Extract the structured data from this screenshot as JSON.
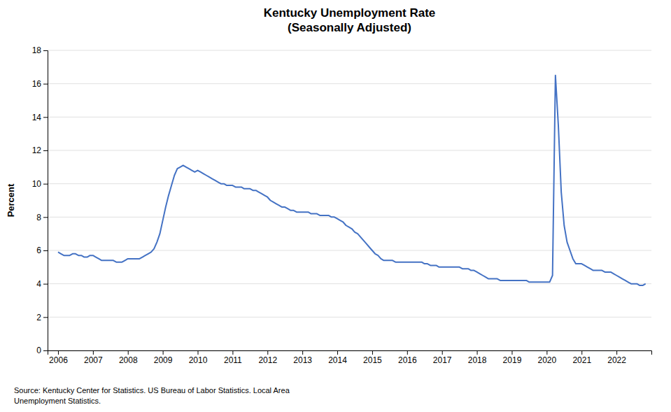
{
  "chart_data": {
    "type": "line",
    "title": "Kentucky Unemployment Rate\n(Seasonally Adjusted)",
    "y_label": "Percent",
    "annotations": [
      "Source: Kentucky Center for Statistics. US Bureau of Labor Statistics. Local Area\nUnemployment Statistics."
    ],
    "color": "#4472C4",
    "grid": true,
    "xlim": [
      2005.7,
      2023.0
    ],
    "xticks": [
      2006,
      2007,
      2008,
      2009,
      2010,
      2011,
      2012,
      2013,
      2014,
      2015,
      2016,
      2017,
      2018,
      2019,
      2020,
      2021,
      2022
    ],
    "ylim": [
      0,
      18
    ],
    "yticks": [
      0,
      2,
      4,
      6,
      8,
      10,
      12,
      14,
      16,
      18
    ],
    "x": [
      2006,
      2006.0833333333333,
      2006.1666666666667,
      2006.25,
      2006.3333333333333,
      2006.4166666666667,
      2006.5,
      2006.5833333333333,
      2006.6666666666667,
      2006.75,
      2006.8333333333333,
      2006.9166666666667,
      2007,
      2007.0833333333333,
      2007.1666666666667,
      2007.25,
      2007.3333333333333,
      2007.4166666666667,
      2007.5,
      2007.5833333333333,
      2007.6666666666667,
      2007.75,
      2007.8333333333333,
      2007.9166666666667,
      2008,
      2008.0833333333333,
      2008.1666666666667,
      2008.25,
      2008.3333333333333,
      2008.4166666666667,
      2008.5,
      2008.5833333333333,
      2008.6666666666667,
      2008.75,
      2008.8333333333333,
      2008.9166666666667,
      2009,
      2009.0833333333333,
      2009.1666666666667,
      2009.25,
      2009.3333333333333,
      2009.4166666666667,
      2009.5,
      2009.5833333333333,
      2009.6666666666667,
      2009.75,
      2009.8333333333333,
      2009.9166666666667,
      2010,
      2010.0833333333333,
      2010.1666666666667,
      2010.25,
      2010.3333333333333,
      2010.4166666666667,
      2010.5,
      2010.5833333333333,
      2010.6666666666667,
      2010.75,
      2010.8333333333333,
      2010.9166666666667,
      2011,
      2011.0833333333333,
      2011.1666666666667,
      2011.25,
      2011.3333333333333,
      2011.4166666666667,
      2011.5,
      2011.5833333333333,
      2011.6666666666667,
      2011.75,
      2011.8333333333333,
      2011.9166666666667,
      2012,
      2012.0833333333333,
      2012.1666666666667,
      2012.25,
      2012.3333333333333,
      2012.4166666666667,
      2012.5,
      2012.5833333333333,
      2012.6666666666667,
      2012.75,
      2012.8333333333333,
      2012.9166666666667,
      2013,
      2013.0833333333333,
      2013.1666666666667,
      2013.25,
      2013.3333333333333,
      2013.4166666666667,
      2013.5,
      2013.5833333333333,
      2013.6666666666667,
      2013.75,
      2013.8333333333333,
      2013.9166666666667,
      2014,
      2014.0833333333333,
      2014.1666666666667,
      2014.25,
      2014.3333333333333,
      2014.4166666666667,
      2014.5,
      2014.5833333333333,
      2014.6666666666667,
      2014.75,
      2014.8333333333333,
      2014.9166666666667,
      2015,
      2015.0833333333333,
      2015.1666666666667,
      2015.25,
      2015.3333333333333,
      2015.4166666666667,
      2015.5,
      2015.5833333333333,
      2015.6666666666667,
      2015.75,
      2015.8333333333333,
      2015.9166666666667,
      2016,
      2016.0833333333333,
      2016.1666666666667,
      2016.25,
      2016.3333333333333,
      2016.4166666666667,
      2016.5,
      2016.5833333333333,
      2016.6666666666667,
      2016.75,
      2016.8333333333333,
      2016.9166666666667,
      2017,
      2017.0833333333333,
      2017.1666666666667,
      2017.25,
      2017.3333333333333,
      2017.4166666666667,
      2017.5,
      2017.5833333333333,
      2017.6666666666667,
      2017.75,
      2017.8333333333333,
      2017.9166666666667,
      2018,
      2018.0833333333333,
      2018.1666666666667,
      2018.25,
      2018.3333333333333,
      2018.4166666666667,
      2018.5,
      2018.5833333333333,
      2018.6666666666667,
      2018.75,
      2018.8333333333333,
      2018.9166666666667,
      2019,
      2019.0833333333333,
      2019.1666666666667,
      2019.25,
      2019.3333333333333,
      2019.4166666666667,
      2019.5,
      2019.5833333333333,
      2019.6666666666667,
      2019.75,
      2019.8333333333333,
      2019.9166666666667,
      2020,
      2020.0833333333333,
      2020.1666666666667,
      2020.25,
      2020.3333333333333,
      2020.4166666666667,
      2020.5,
      2020.5833333333333,
      2020.6666666666667,
      2020.75,
      2020.8333333333333,
      2020.9166666666667,
      2021,
      2021.0833333333333,
      2021.1666666666667,
      2021.25,
      2021.3333333333333,
      2021.4166666666667,
      2021.5,
      2021.5833333333333,
      2021.6666666666667,
      2021.75,
      2021.8333333333333,
      2021.9166666666667,
      2022,
      2022.0833333333333,
      2022.1666666666667,
      2022.25,
      2022.3333333333333,
      2022.4166666666667,
      2022.5,
      2022.5833333333333,
      2022.6666666666667,
      2022.75,
      2022.8333333333333
    ],
    "values": [
      5.9,
      5.8,
      5.7,
      5.7,
      5.7,
      5.8,
      5.8,
      5.7,
      5.7,
      5.6,
      5.6,
      5.7,
      5.7,
      5.6,
      5.5,
      5.4,
      5.4,
      5.4,
      5.4,
      5.4,
      5.3,
      5.3,
      5.3,
      5.4,
      5.5,
      5.5,
      5.5,
      5.5,
      5.5,
      5.6,
      5.7,
      5.8,
      5.9,
      6.1,
      6.5,
      7.0,
      7.8,
      8.6,
      9.3,
      9.9,
      10.5,
      10.9,
      11.0,
      11.1,
      11.0,
      10.9,
      10.8,
      10.7,
      10.8,
      10.7,
      10.6,
      10.5,
      10.4,
      10.3,
      10.2,
      10.1,
      10.0,
      10.0,
      9.9,
      9.9,
      9.9,
      9.8,
      9.8,
      9.8,
      9.7,
      9.7,
      9.7,
      9.6,
      9.6,
      9.5,
      9.4,
      9.3,
      9.2,
      9.0,
      8.9,
      8.8,
      8.7,
      8.6,
      8.6,
      8.5,
      8.4,
      8.4,
      8.3,
      8.3,
      8.3,
      8.3,
      8.3,
      8.2,
      8.2,
      8.2,
      8.1,
      8.1,
      8.1,
      8.1,
      8.0,
      8.0,
      7.9,
      7.8,
      7.7,
      7.5,
      7.4,
      7.3,
      7.1,
      7.0,
      6.8,
      6.6,
      6.4,
      6.2,
      6.0,
      5.8,
      5.7,
      5.5,
      5.4,
      5.4,
      5.4,
      5.4,
      5.3,
      5.3,
      5.3,
      5.3,
      5.3,
      5.3,
      5.3,
      5.3,
      5.3,
      5.3,
      5.2,
      5.2,
      5.1,
      5.1,
      5.1,
      5.0,
      5.0,
      5.0,
      5.0,
      5.0,
      5.0,
      5.0,
      5.0,
      4.9,
      4.9,
      4.9,
      4.8,
      4.8,
      4.7,
      4.6,
      4.5,
      4.4,
      4.3,
      4.3,
      4.3,
      4.3,
      4.2,
      4.2,
      4.2,
      4.2,
      4.2,
      4.2,
      4.2,
      4.2,
      4.2,
      4.2,
      4.1,
      4.1,
      4.1,
      4.1,
      4.1,
      4.1,
      4.1,
      4.1,
      4.5,
      16.5,
      13.5,
      9.5,
      7.5,
      6.5,
      6.0,
      5.5,
      5.2,
      5.2,
      5.2,
      5.1,
      5.0,
      4.9,
      4.8,
      4.8,
      4.8,
      4.8,
      4.7,
      4.7,
      4.7,
      4.6,
      4.5,
      4.4,
      4.3,
      4.2,
      4.1,
      4.0,
      4.0,
      4.0,
      3.9,
      3.9,
      4.0
    ]
  }
}
